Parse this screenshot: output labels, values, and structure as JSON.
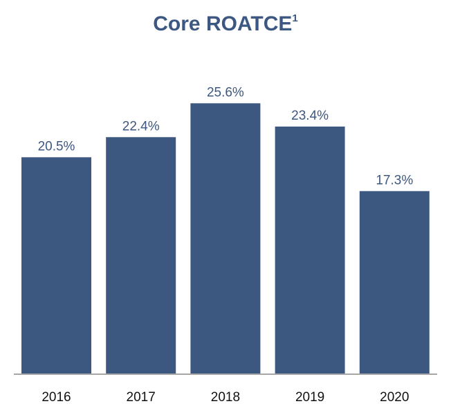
{
  "chart_data": {
    "type": "bar",
    "title": "Core ROATCE",
    "title_superscript": "1",
    "categories": [
      "2016",
      "2017",
      "2018",
      "2019",
      "2020"
    ],
    "values": [
      20.5,
      22.4,
      25.6,
      23.4,
      17.3
    ],
    "value_labels": [
      "20.5%",
      "22.4%",
      "25.6%",
      "23.4%",
      "17.3%"
    ],
    "unit": "%",
    "xlabel": "",
    "ylabel": "",
    "ylim": [
      0,
      30
    ],
    "grid": false,
    "legend": "none",
    "bar_color": "#3d5880",
    "title_color": "#3c5781",
    "axis_color": "#a6a6a6"
  }
}
